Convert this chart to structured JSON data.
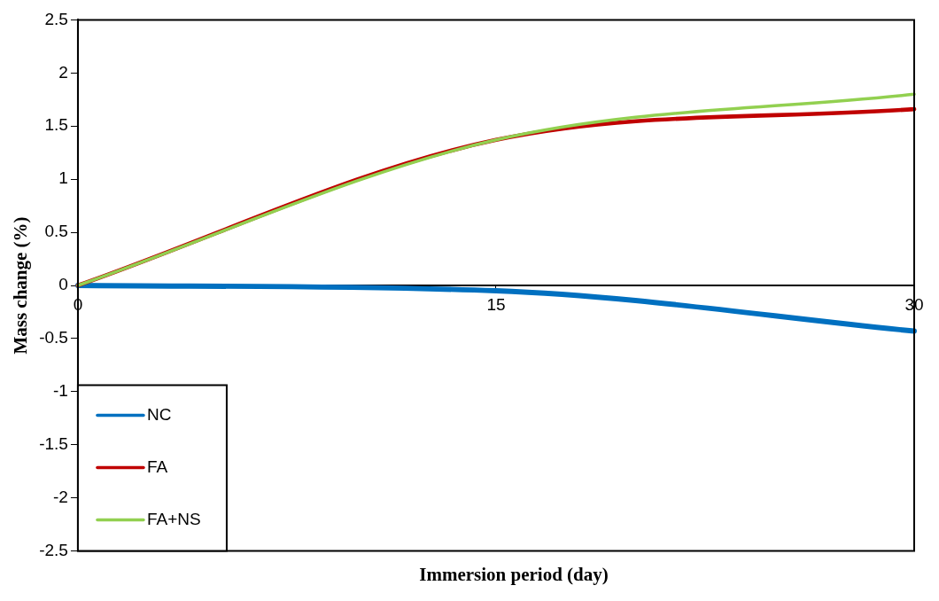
{
  "chart_data": {
    "type": "line",
    "xlabel": "Immersion period (day)",
    "ylabel": "Mass change (%)",
    "x": [
      0,
      15,
      30
    ],
    "series": [
      {
        "name": "NC",
        "color": "#0070c0",
        "values": [
          0,
          -0.05,
          -0.43
        ]
      },
      {
        "name": "FA",
        "color": "#c00000",
        "values": [
          0,
          1.37,
          1.66
        ]
      },
      {
        "name": "FA+NS",
        "color": "#92d050",
        "values": [
          0,
          1.37,
          1.8
        ]
      }
    ],
    "xlim": [
      0,
      30
    ],
    "xticks": [
      0,
      15,
      30
    ],
    "ylim": [
      -2.5,
      2.5
    ],
    "yticks": [
      -2.5,
      -2,
      -1.5,
      -1,
      -0.5,
      0,
      0.5,
      1,
      1.5,
      2,
      2.5
    ],
    "grid": false,
    "legend": "bottom left",
    "marker": "none",
    "line_style": "solid"
  }
}
